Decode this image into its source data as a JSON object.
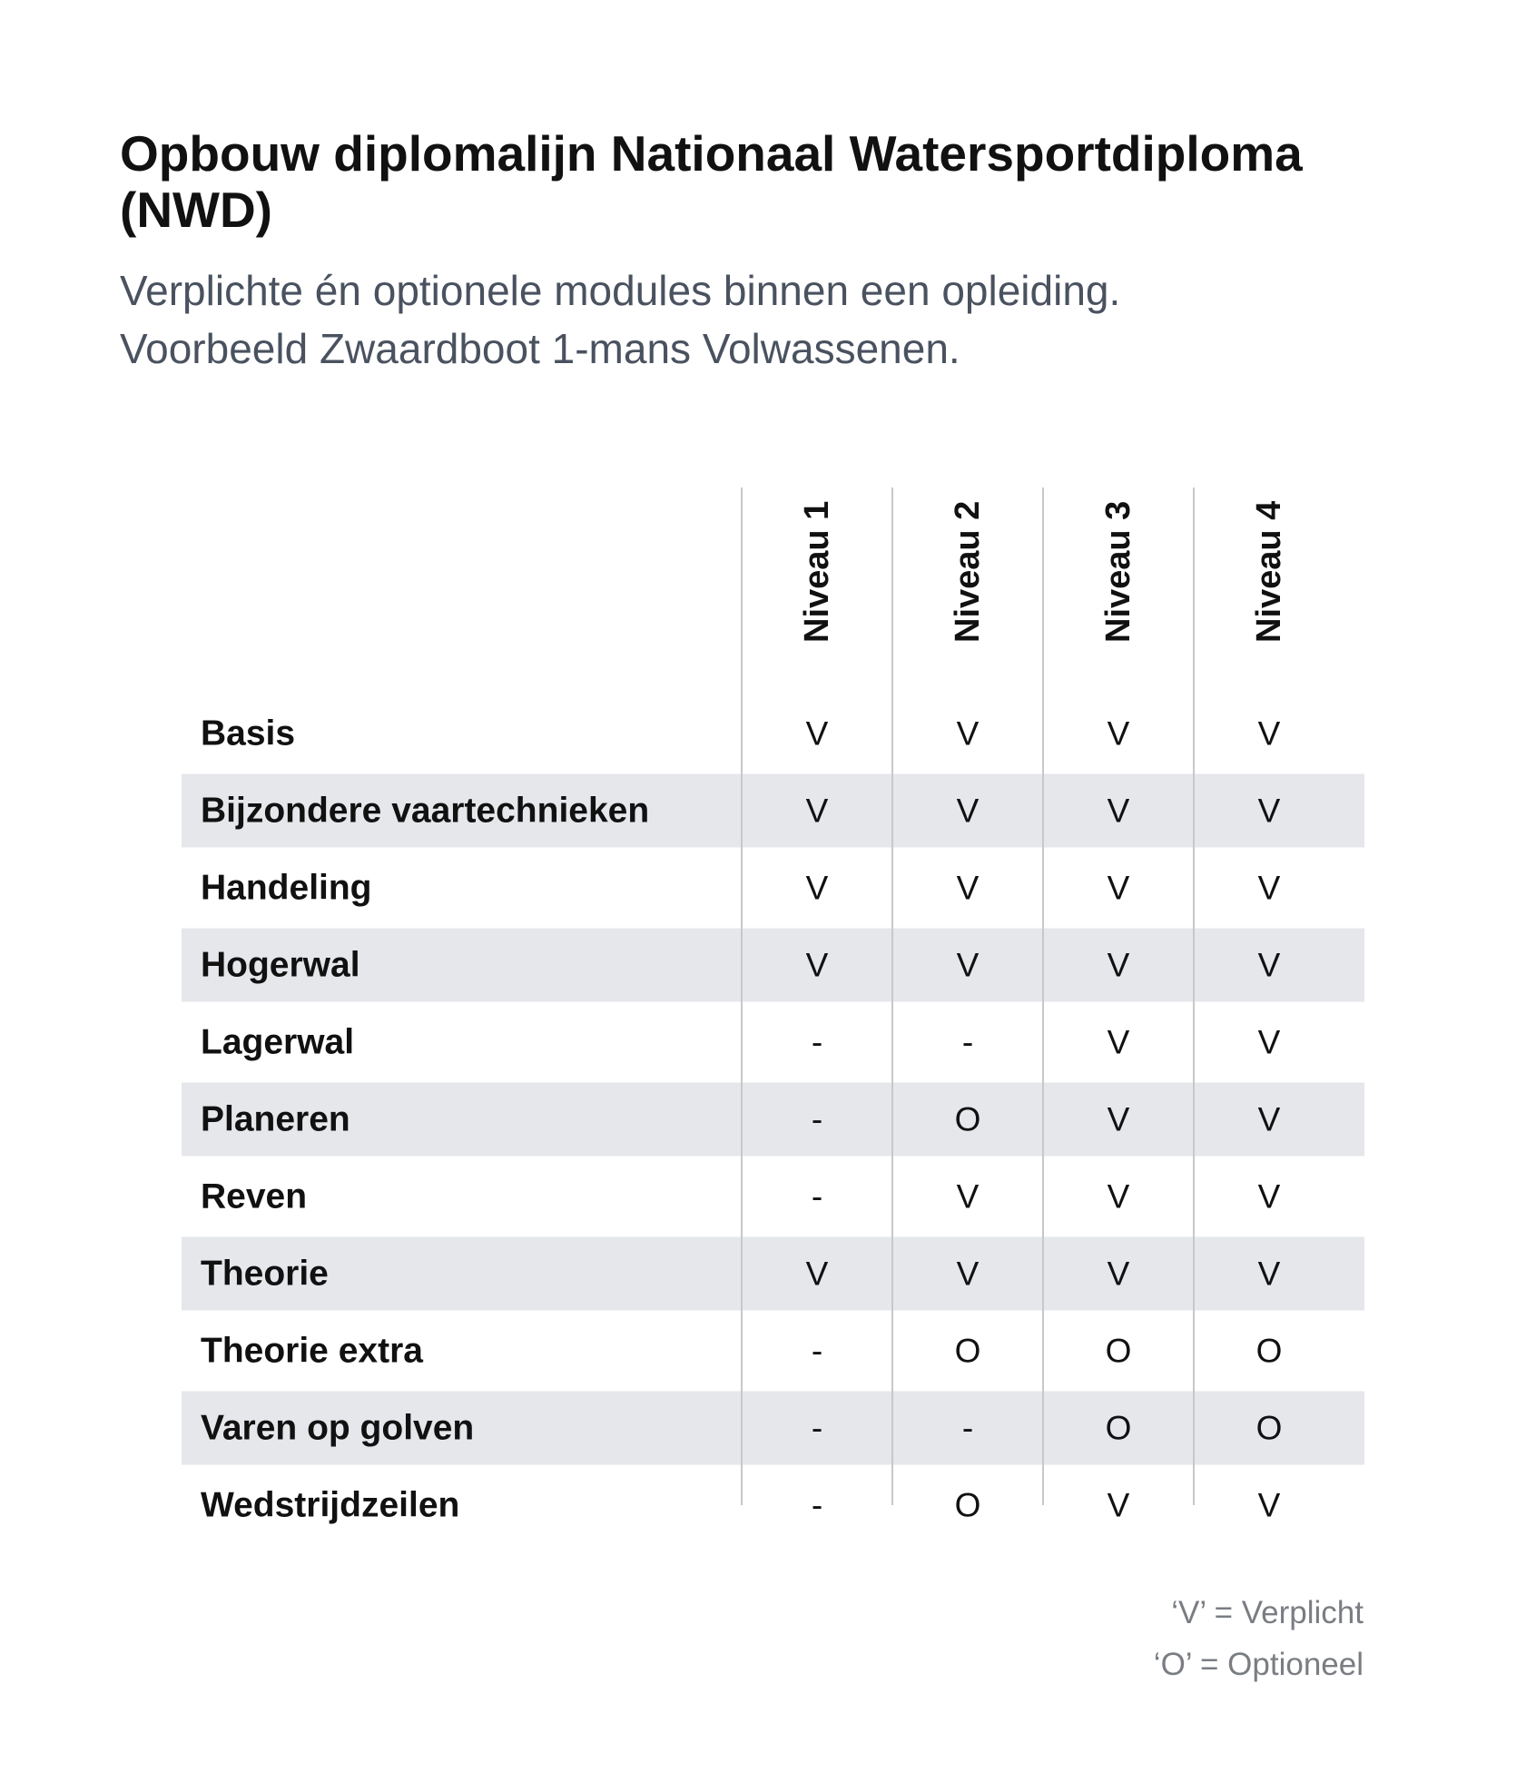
{
  "title": "Opbouw diplomalijn Nationaal Watersportdiploma (NWD)",
  "subtitle_lines": [
    "Verplichte én optionele modules binnen een opleiding.",
    "Voorbeeld Zwaardboot 1-mans Volwassenen."
  ],
  "chart_data": {
    "type": "table",
    "columns": [
      "Niveau 1",
      "Niveau 2",
      "Niveau 3",
      "Niveau 4"
    ],
    "rows": [
      {
        "label": "Basis",
        "values": [
          "V",
          "V",
          "V",
          "V"
        ]
      },
      {
        "label": "Bijzondere vaartechnieken",
        "values": [
          "V",
          "V",
          "V",
          "V"
        ]
      },
      {
        "label": "Handeling",
        "values": [
          "V",
          "V",
          "V",
          "V"
        ]
      },
      {
        "label": "Hogerwal",
        "values": [
          "V",
          "V",
          "V",
          "V"
        ]
      },
      {
        "label": "Lagerwal",
        "values": [
          "-",
          "-",
          "V",
          "V"
        ]
      },
      {
        "label": "Planeren",
        "values": [
          "-",
          "O",
          "V",
          "V"
        ]
      },
      {
        "label": "Reven",
        "values": [
          "-",
          "V",
          "V",
          "V"
        ]
      },
      {
        "label": "Theorie",
        "values": [
          "V",
          "V",
          "V",
          "V"
        ]
      },
      {
        "label": "Theorie extra",
        "values": [
          "-",
          "O",
          "O",
          "O"
        ]
      },
      {
        "label": "Varen op golven",
        "values": [
          "-",
          "-",
          "O",
          "O"
        ]
      },
      {
        "label": "Wedstrijdzeilen",
        "values": [
          "-",
          "O",
          "V",
          "V"
        ]
      }
    ]
  },
  "legend": [
    "‘V’ = Verplicht",
    "‘O’ = Optioneel"
  ],
  "colors": {
    "stripe": "#e5e7eb",
    "divider": "#c8c8c8",
    "text": "#111111",
    "subtitle": "#4a5260",
    "legend": "#7a7d82"
  }
}
